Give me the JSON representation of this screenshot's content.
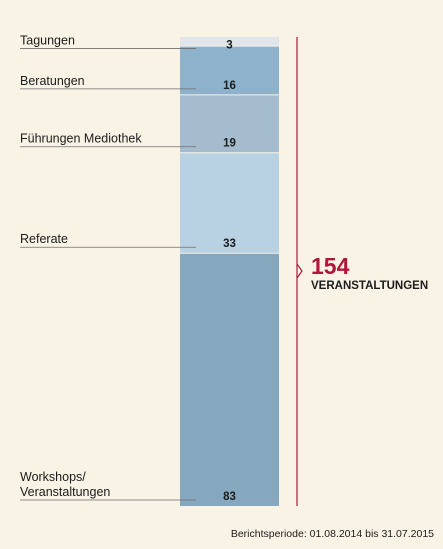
{
  "chart_data": {
    "type": "bar",
    "stacked": true,
    "categories": [
      "Tagungen",
      "Beratungen",
      "Führungen Mediothek",
      "Referate",
      "Workshops/\nVeranstaltungen"
    ],
    "values": [
      3,
      16,
      19,
      33,
      83
    ],
    "colors": [
      "#dfe5e9",
      "#8fb2cc",
      "#a4bccd",
      "#b8d1e3",
      "#86a8bf"
    ],
    "total": {
      "value": "154",
      "label": "VERANSTALTUNGEN",
      "color": "#b0163a"
    },
    "footnote": "Berichtsperiode: 01.08.2014 bis 31.07.2015"
  }
}
